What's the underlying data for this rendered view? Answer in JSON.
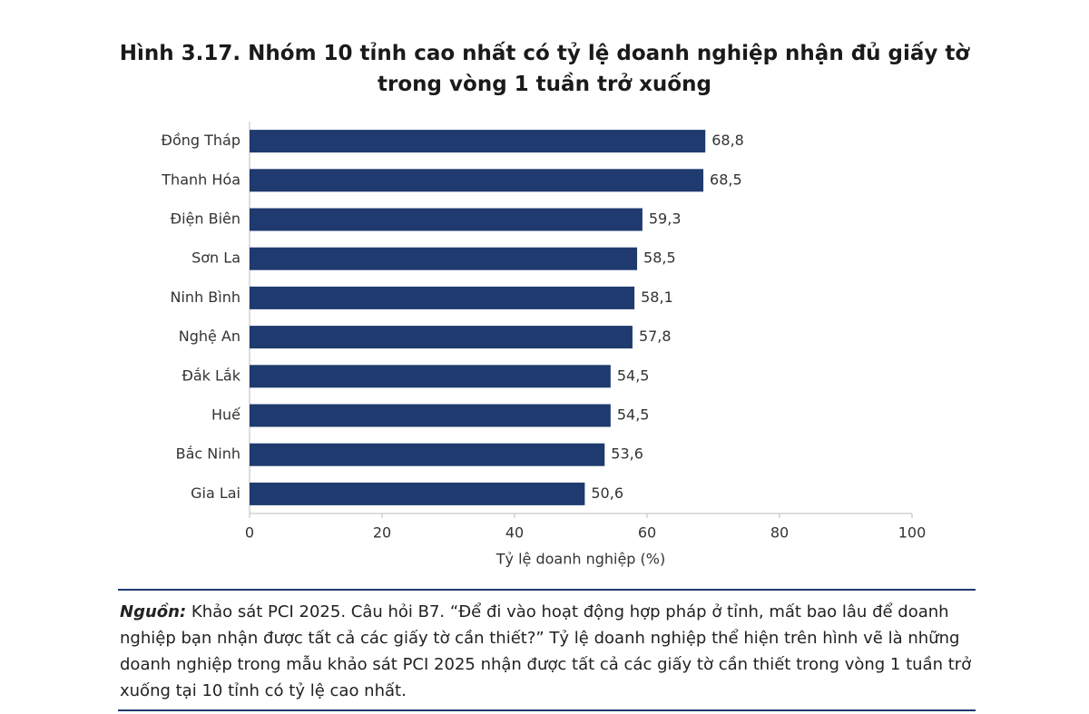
{
  "chart_data": {
    "type": "barh",
    "title": "Hình 3.17. Nhóm 10 tỉnh cao nhất có tỷ lệ doanh nghiệp nhận đủ giấy tờ trong vòng 1 tuần trở xuống",
    "categories": [
      "Đồng Tháp",
      "Thanh Hóa",
      "Điện Biên",
      "Sơn La",
      "Ninh Bình",
      "Nghệ An",
      "Đắk Lắk",
      "Huế",
      "Bắc Ninh",
      "Gia Lai"
    ],
    "values": [
      68.8,
      68.5,
      59.3,
      58.5,
      58.1,
      57.8,
      54.5,
      54.5,
      53.6,
      50.6
    ],
    "value_labels": [
      "68,8",
      "68,5",
      "59,3",
      "58,5",
      "58,1",
      "57,8",
      "54,5",
      "54,5",
      "53,6",
      "50,6"
    ],
    "color": "#1f3a6e",
    "xlabel": "Tỷ lệ doanh nghiệp (%)",
    "xlim": [
      0,
      100
    ],
    "xticks": [
      0,
      20,
      40,
      60,
      80,
      100
    ],
    "grid": false
  },
  "source_label": "Nguồn:",
  "source_text": "Khảo sát PCI 2025. Câu hỏi B7. “Để đi vào hoạt động hợp pháp ở tỉnh, mất bao lâu để doanh nghiệp bạn nhận được tất cả các giấy tờ cần thiết?” Tỷ lệ doanh nghiệp thể hiện trên hình vẽ là những doanh nghiệp trong mẫu khảo sát PCI 2025  nhận được tất cả các giấy tờ cần thiết trong vòng 1 tuần trở xuống tại 10 tỉnh có tỷ lệ cao nhất."
}
